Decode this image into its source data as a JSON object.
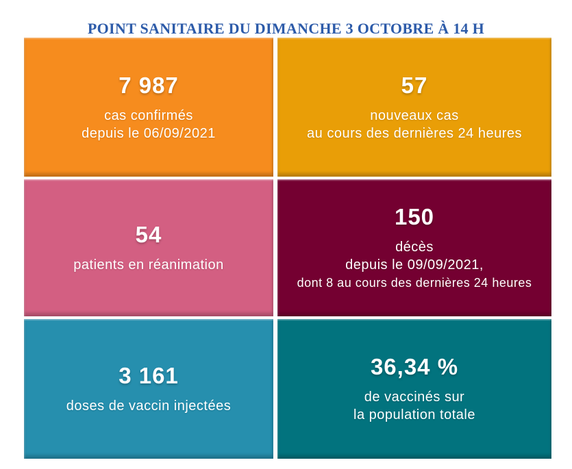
{
  "title": "POINT SANITAIRE DU DIMANCHE 3 OCTOBRE À 14 H",
  "title_color": "#2D5BA9",
  "tiles": [
    {
      "name": "confirmed-cases",
      "value": "7 987",
      "lines": [
        "cas confirmés",
        "depuis le 06/09/2021"
      ],
      "color": "#F68C1E"
    },
    {
      "name": "new-cases",
      "value": "57",
      "lines": [
        "nouveaux cas",
        "au cours des dernières 24 heures"
      ],
      "color": "#E99E07"
    },
    {
      "name": "icu-patients",
      "value": "54",
      "lines": [
        "patients en réanimation"
      ],
      "color": "#D35F82"
    },
    {
      "name": "deaths",
      "value": "150",
      "lines": [
        "décès",
        "depuis le 09/09/2021,",
        "dont 8 au cours des dernières 24 heures"
      ],
      "color": "#740031"
    },
    {
      "name": "vaccine-doses",
      "value": "3 161",
      "lines": [
        "doses de vaccin injectées"
      ],
      "color": "#268FAE"
    },
    {
      "name": "vaccinated-share",
      "value": "36,34 %",
      "lines": [
        "de vaccinés sur",
        "la population totale"
      ],
      "color": "#02737E"
    }
  ],
  "chart_data": {
    "type": "table",
    "title": "POINT SANITAIRE DU DIMANCHE 3 OCTOBRE À 14 H",
    "stats": [
      {
        "label": "cas confirmés depuis le 06/09/2021",
        "value": 7987
      },
      {
        "label": "nouveaux cas au cours des dernières 24 heures",
        "value": 57
      },
      {
        "label": "patients en réanimation",
        "value": 54
      },
      {
        "label": "décès depuis le 09/09/2021, dont 8 au cours des dernières 24 heures",
        "value": 150
      },
      {
        "label": "doses de vaccin injectées",
        "value": 3161
      },
      {
        "label": "de vaccinés sur la population totale",
        "value": 36.34,
        "unit": "%"
      }
    ]
  }
}
